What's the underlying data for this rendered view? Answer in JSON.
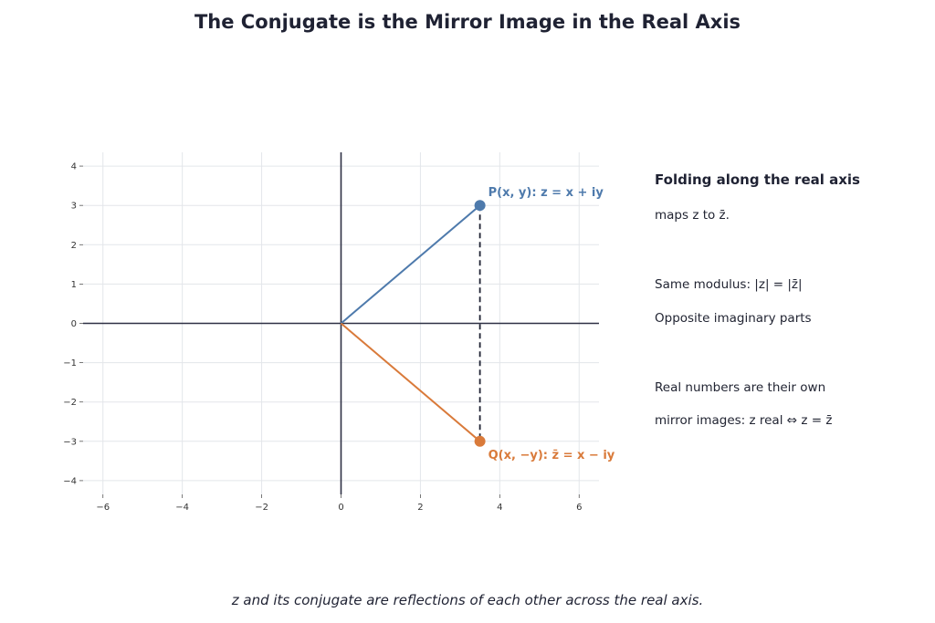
{
  "title": "The Conjugate is the Mirror Image in the Real Axis",
  "caption": "z and its conjugate are reflections of each other across the real axis.",
  "side_text": {
    "heading": "Folding along the real axis",
    "lines": [
      "maps z to z̄.",
      "Same modulus: |z| = |z̄|",
      "Opposite imaginary parts",
      "Real numbers are their own",
      "mirror images: z real ⇔ z = z̄"
    ]
  },
  "colors": {
    "z_color": "#4e7aac",
    "conj_color": "#d97a3a",
    "axis_color": "#2e3044",
    "grid_color": "#e3e6ea",
    "dashed_color": "#1f2233"
  },
  "chart_data": {
    "type": "scatter",
    "xlim": [
      -6.5,
      6.5
    ],
    "ylim": [
      -4.35,
      4.35
    ],
    "x_ticks": [
      -6,
      -4,
      -2,
      0,
      2,
      4,
      6
    ],
    "y_ticks": [
      4,
      3,
      2,
      1,
      0,
      -1,
      -2,
      -3,
      -4
    ],
    "x_tick_labels": [
      "−6",
      "−4",
      "−2",
      "0",
      "2",
      "4",
      "6"
    ],
    "y_tick_labels": [
      "4",
      "3",
      "2",
      "1",
      "0",
      "−1",
      "−2",
      "−3",
      "−4"
    ],
    "grid": true,
    "points": [
      {
        "name": "z",
        "x": 3.5,
        "y": 3,
        "label": "P(x, y):  z = x + iy"
      },
      {
        "name": "z-conjugate",
        "x": 3.5,
        "y": -3,
        "label": "Q(x, −y):  z̄ = x − iy"
      }
    ],
    "segments": [
      {
        "from": [
          0,
          0
        ],
        "to": [
          3.5,
          3
        ],
        "style": "solid",
        "series": "z"
      },
      {
        "from": [
          0,
          0
        ],
        "to": [
          3.5,
          -3
        ],
        "style": "solid",
        "series": "z-conjugate"
      },
      {
        "from": [
          3.5,
          3
        ],
        "to": [
          3.5,
          -3
        ],
        "style": "dashed",
        "series": "reflection"
      }
    ]
  }
}
